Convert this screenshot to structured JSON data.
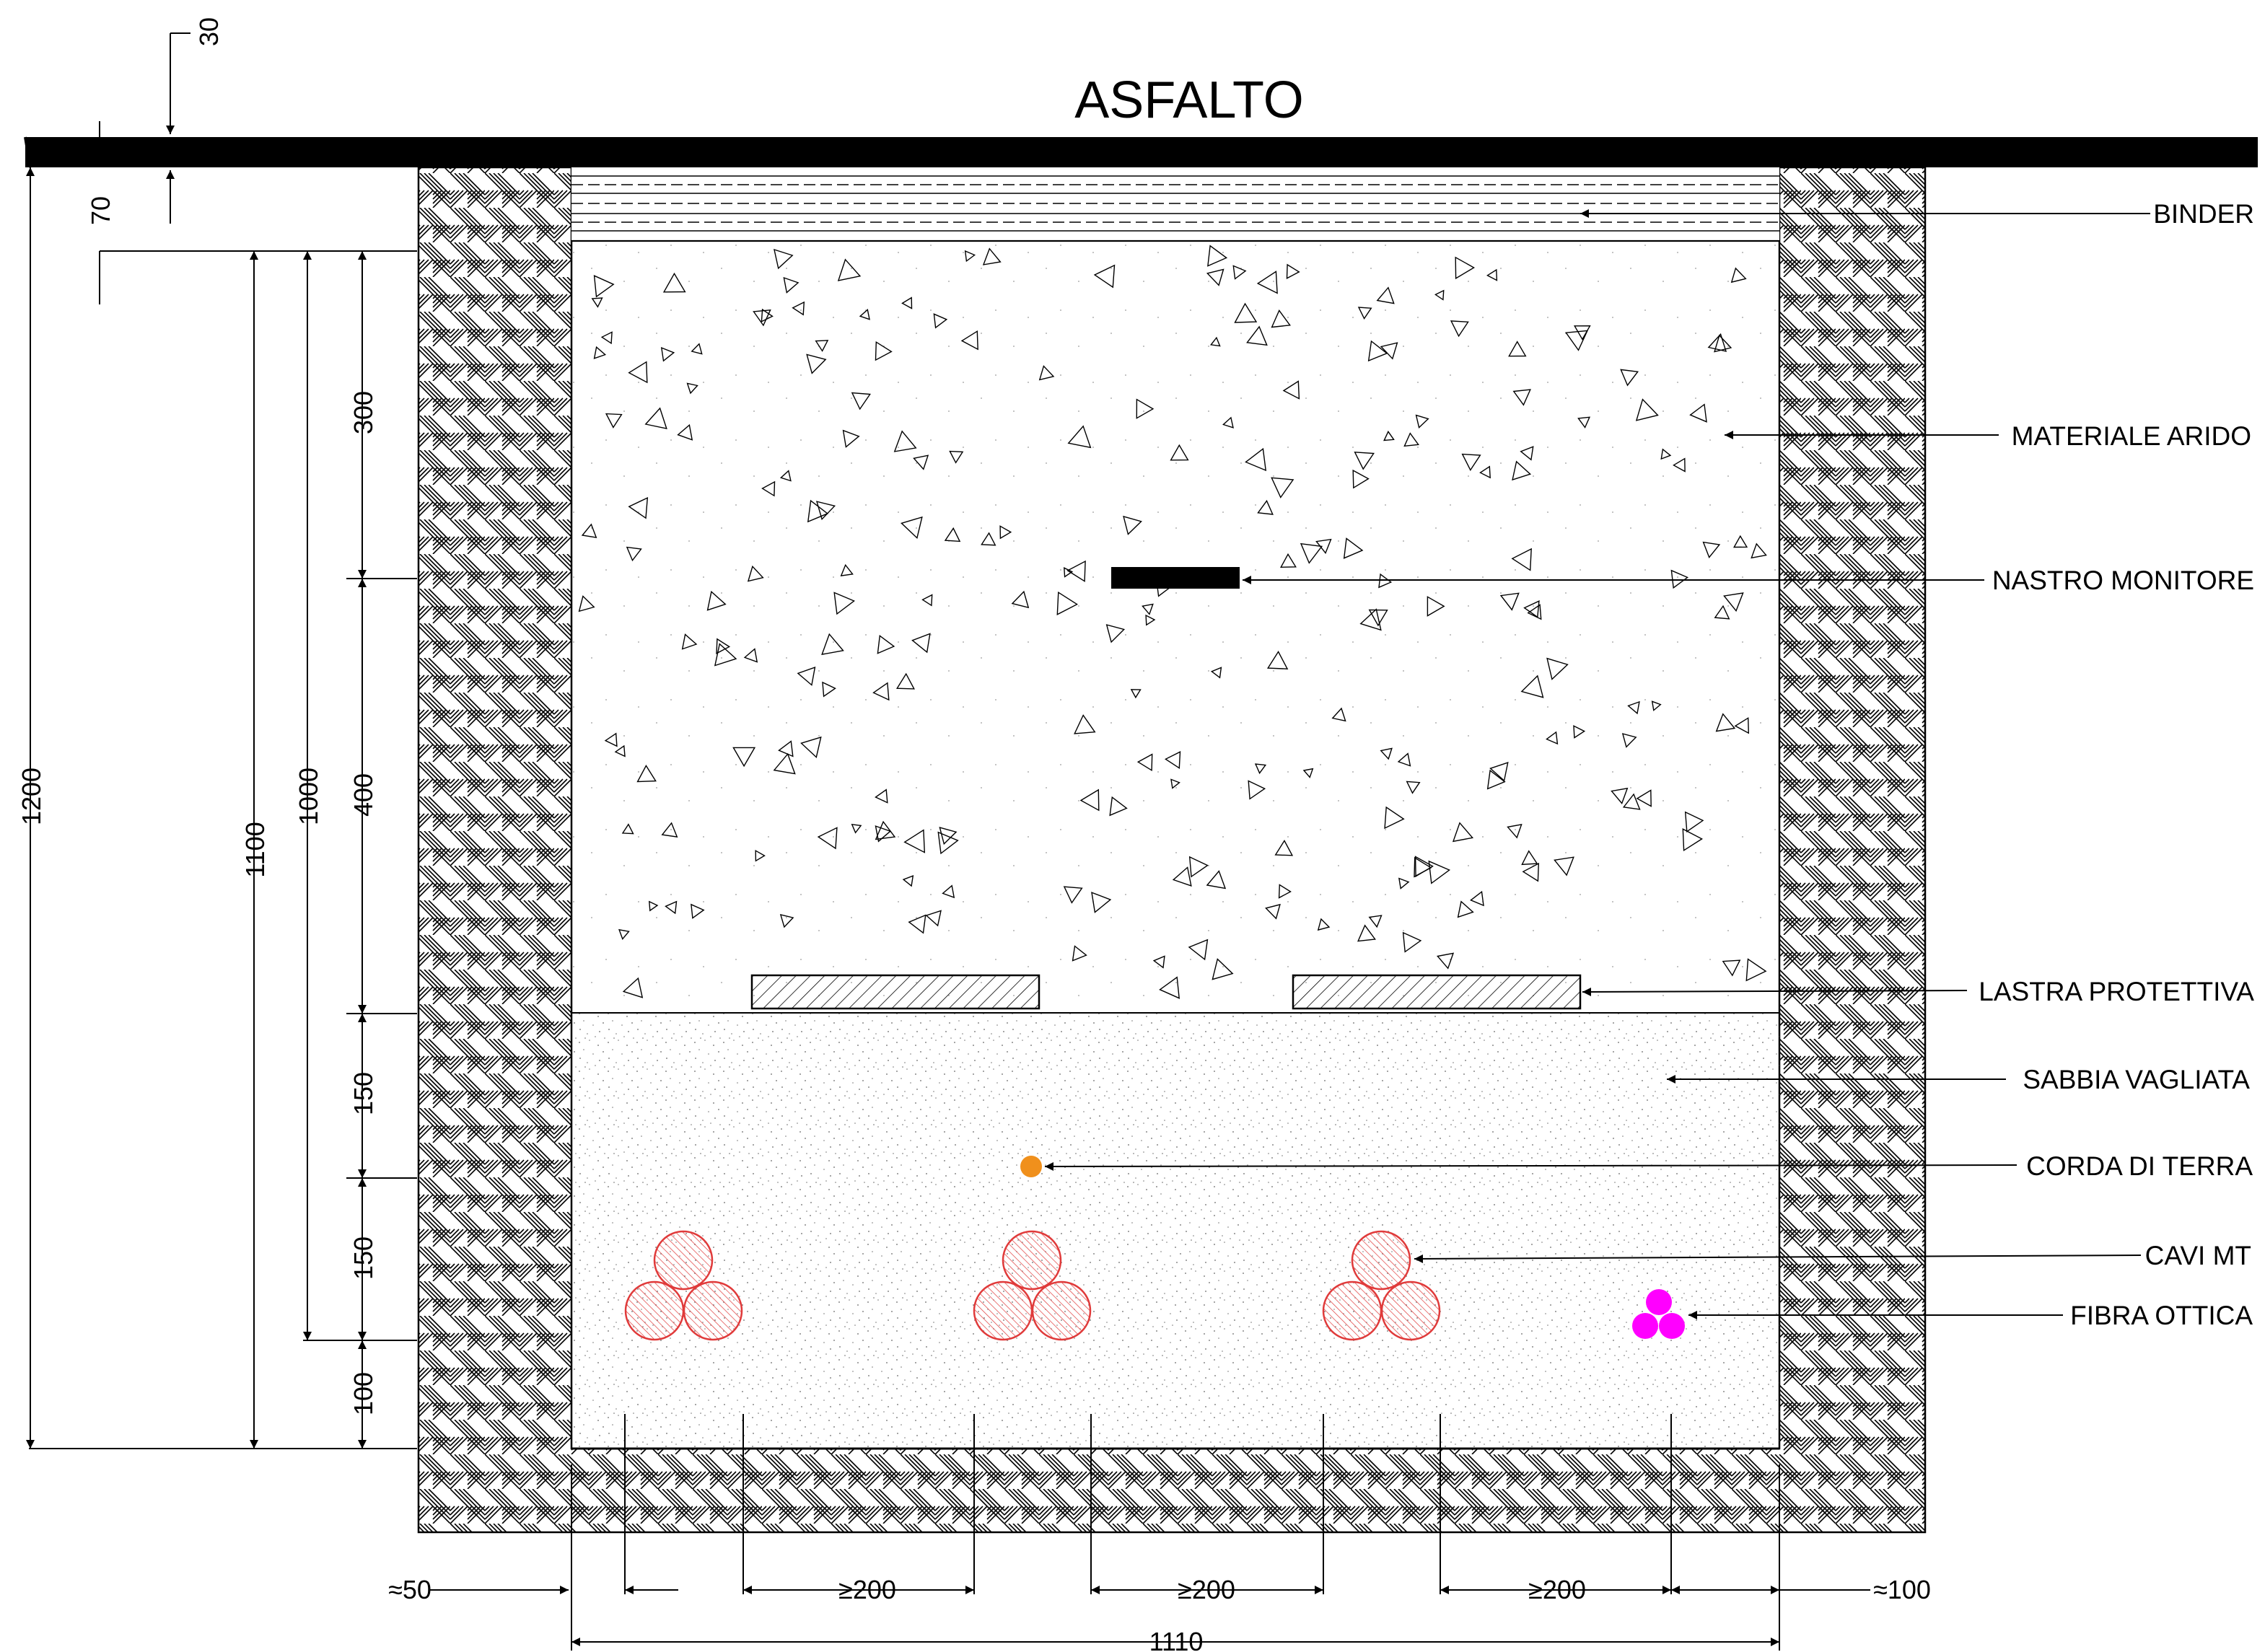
{
  "title": "ASFALTO",
  "colors": {
    "asphalt": "#000000",
    "mt_cable": "#e03a3a",
    "earth_cord": "#f0901c",
    "fiber": "#ff00ff"
  },
  "layers": {
    "binder": "BINDER",
    "materiale_arido": "MATERIALE ARIDO",
    "nastro_monitore": "NASTRO MONITORE",
    "lastra_protettiva": "LASTRA PROTETTIVA",
    "sabbia_vagliata": "SABBIA VAGLIATA",
    "corda_di_terra": "CORDA DI TERRA",
    "cavi_mt": "CAVI MT",
    "fibra_ottica": "FIBRA OTTICA"
  },
  "vertical_dims": {
    "d30": "30",
    "d70": "70",
    "d300": "300",
    "d400": "400",
    "d150a": "150",
    "d150b": "150",
    "d100": "100",
    "d1000": "1000",
    "d1100": "1100",
    "d1200": "1200"
  },
  "horizontal_dims": {
    "left_margin": "≈50",
    "spacing_1": "≥200",
    "spacing_2": "≥200",
    "spacing_3": "≥200",
    "right_margin": "≈100",
    "width": "1110"
  }
}
